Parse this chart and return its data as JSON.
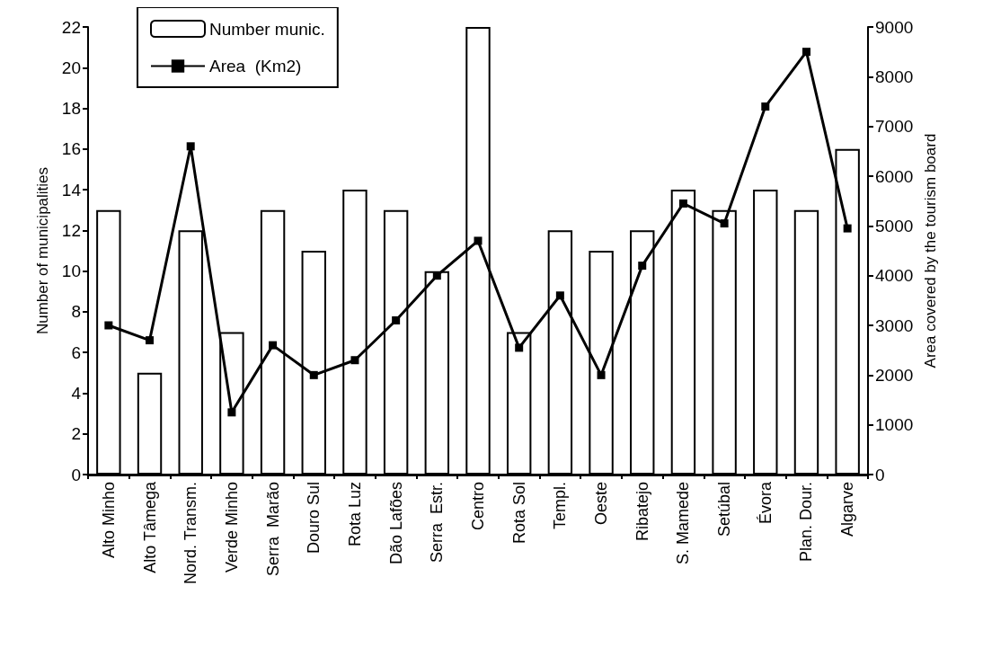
{
  "chart_data": {
    "type": "bar",
    "ylabel": "Number of municipalities",
    "y2label": "Area covered by the tourism board",
    "categories": [
      "Alto Minho",
      "Alto Tâmega",
      "Nord. Transm.",
      "Verde Minho",
      "Serra  Marão",
      "Douro Sul",
      "Rota Luz",
      "Dão Lafões",
      "Serra  Estr.",
      "Centro",
      "Rota Sol",
      "Templ.",
      "Oeste",
      "Ribatejo",
      "S. Mamede",
      "Setúbal",
      "Évora",
      "Plan. Dour.",
      "Algarve"
    ],
    "series": [
      {
        "name": "Number munic.",
        "color": "#ffffff",
        "values": [
          13,
          5,
          12,
          7,
          13,
          11,
          14,
          13,
          10,
          22,
          7,
          12,
          11,
          12,
          14,
          13,
          14,
          13,
          16
        ]
      },
      {
        "name": "Area  (Km2)",
        "type": "line",
        "axis": "y2",
        "color": "#000000",
        "marker": "square",
        "values": [
          3000,
          2700,
          6600,
          1250,
          2600,
          2000,
          2300,
          3100,
          4000,
          4700,
          2550,
          3600,
          2000,
          4200,
          5450,
          5050,
          7400,
          8500,
          4950
        ]
      }
    ],
    "ylim": [
      0,
      22
    ],
    "yticks": [
      0,
      2,
      4,
      6,
      8,
      10,
      12,
      14,
      16,
      18,
      20,
      22
    ],
    "y2lim": [
      0,
      9000
    ],
    "y2ticks": [
      0,
      1000,
      2000,
      3000,
      4000,
      5000,
      6000,
      7000,
      8000,
      9000
    ],
    "legend": "top left",
    "grid": false
  }
}
